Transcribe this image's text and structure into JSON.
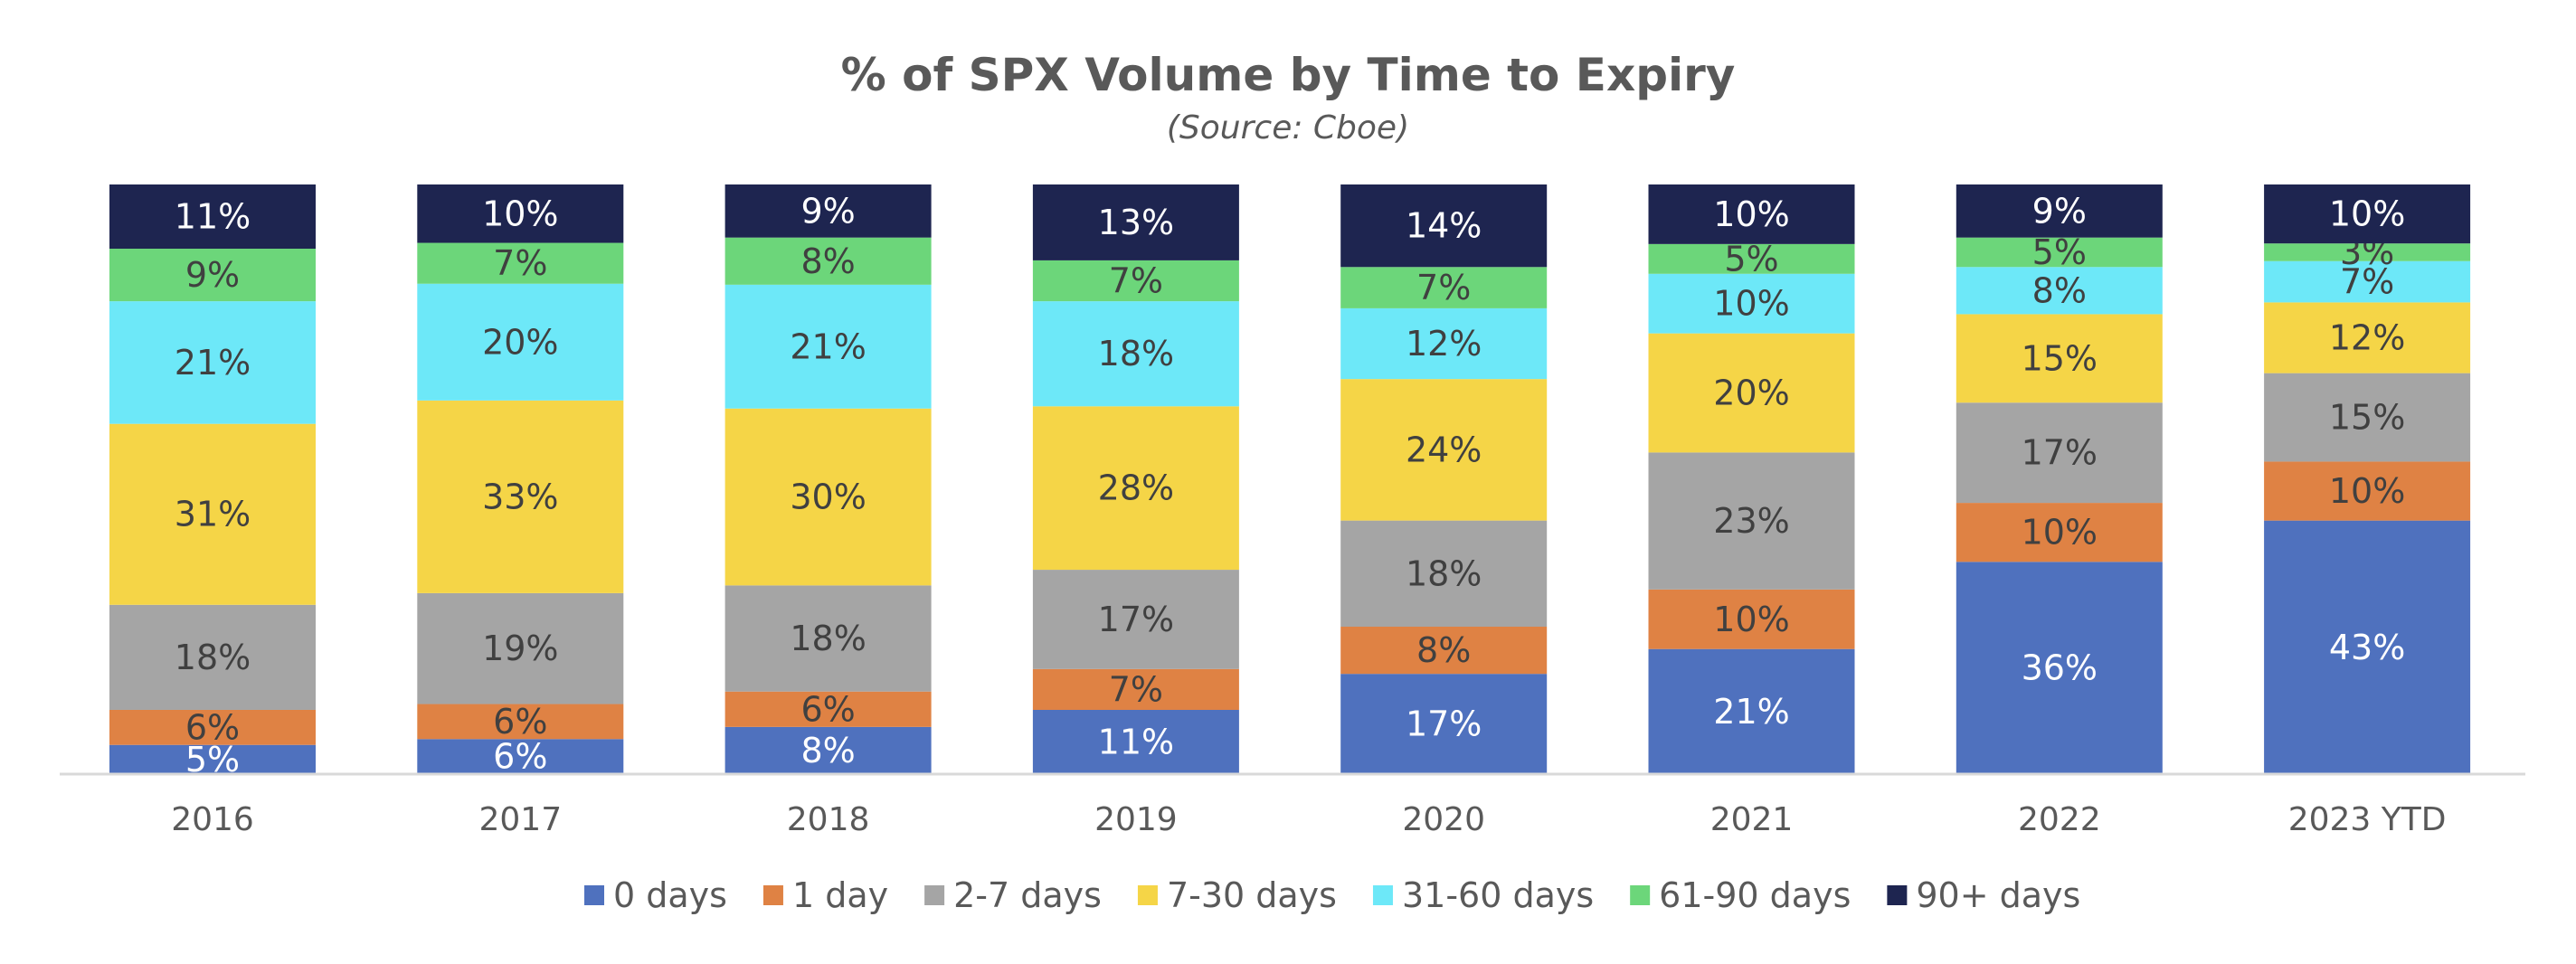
{
  "chart_data": {
    "type": "bar",
    "stacked": true,
    "title": "% of SPX Volume by Time to Expiry",
    "subtitle": "(Source: Cboe)",
    "xlabel": "",
    "ylabel": "",
    "ylim": [
      0,
      100
    ],
    "grid": false,
    "legend_position": "bottom",
    "categories": [
      "2016",
      "2017",
      "2018",
      "2019",
      "2020",
      "2021",
      "2022",
      "2023 YTD"
    ],
    "series": [
      {
        "name": "0 days",
        "color": "#4F71BE",
        "label_color": "#ffffff",
        "values": [
          5,
          6,
          8,
          11,
          17,
          21,
          36,
          43
        ],
        "labels": [
          "5%",
          "6%",
          "8%",
          "11%",
          "17%",
          "21%",
          "36%",
          "43%"
        ]
      },
      {
        "name": "1 day",
        "color": "#DF8244",
        "label_color": "#404040",
        "values": [
          6,
          6,
          6,
          7,
          8,
          10,
          10,
          10
        ],
        "labels": [
          "6%",
          "6%",
          "6%",
          "7%",
          "8%",
          "10%",
          "10%",
          "10%"
        ]
      },
      {
        "name": "2-7 days",
        "color": "#A5A5A5",
        "label_color": "#404040",
        "values": [
          18,
          19,
          18,
          17,
          18,
          23,
          17,
          15
        ],
        "labels": [
          "18%",
          "19%",
          "18%",
          "17%",
          "18%",
          "23%",
          "17%",
          "15%"
        ]
      },
      {
        "name": "7-30 days",
        "color": "#F5D547",
        "label_color": "#404040",
        "values": [
          31,
          33,
          30,
          28,
          24,
          20,
          15,
          12
        ],
        "labels": [
          "31%",
          "33%",
          "30%",
          "28%",
          "24%",
          "20%",
          "15%",
          "12%"
        ]
      },
      {
        "name": "31-60 days",
        "color": "#6DE8F8",
        "label_color": "#404040",
        "values": [
          21,
          20,
          21,
          18,
          12,
          10,
          8,
          7
        ],
        "labels": [
          "21%",
          "20%",
          "21%",
          "18%",
          "12%",
          "10%",
          "8%",
          "7%"
        ]
      },
      {
        "name": "61-90 days",
        "color": "#6CD67A",
        "label_color": "#404040",
        "values": [
          9,
          7,
          8,
          7,
          7,
          5,
          5,
          3
        ],
        "labels": [
          "9%",
          "7%",
          "8%",
          "7%",
          "7%",
          "5%",
          "5%",
          "3%"
        ]
      },
      {
        "name": "90+ days",
        "color": "#1E2550",
        "label_color": "#ffffff",
        "values": [
          11,
          10,
          9,
          13,
          14,
          10,
          9,
          10
        ],
        "labels": [
          "11%",
          "10%",
          "9%",
          "13%",
          "14%",
          "10%",
          "9%",
          "10%"
        ]
      }
    ]
  }
}
